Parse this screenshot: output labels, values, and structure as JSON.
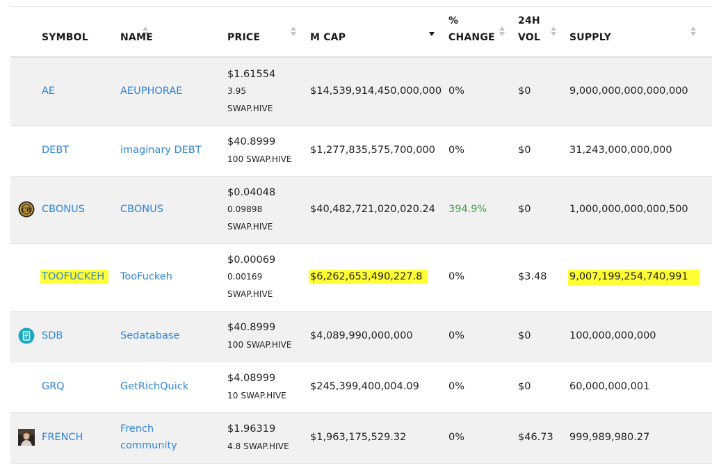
{
  "columns": [
    {
      "label": ""
    },
    {
      "label": "SYMBOL"
    },
    {
      "label": "NAME"
    },
    {
      "label": "PRICE"
    },
    {
      "label": "M CAP"
    },
    {
      "label": "% CHANGE"
    },
    {
      "label": "24H VOL"
    },
    {
      "label": "SUPPLY"
    }
  ],
  "header": {
    "change_line1": "%",
    "change_line2": "CHANGE",
    "vol_line1": "24H",
    "vol_line2": "VOL"
  },
  "rows": [
    {
      "icon": "",
      "symbol": "AE",
      "name": "AEUPHORAE",
      "price": "$1.61554",
      "price_sub1": "3.95",
      "price_sub2": "SWAP.HIVE",
      "mcap": "$14,539,914,450,000,000",
      "change": "0%",
      "vol": "$0",
      "supply": "9,000,000,000,000,000"
    },
    {
      "icon": "",
      "symbol": "DEBT",
      "name": "imaginary DEBT",
      "price": "$40.8999",
      "price_sub1": "100 SWAP.HIVE",
      "price_sub2": "",
      "mcap": "$1,277,835,575,700,000",
      "change": "0%",
      "vol": "$0",
      "supply": "31,243,000,000,000"
    },
    {
      "icon": "cbonus-coin-icon",
      "symbol": "CBONUS",
      "name": "CBONUS",
      "price": "$0.04048",
      "price_sub1": "0.09898",
      "price_sub2": "SWAP.HIVE",
      "mcap": "$40,482,721,020,020.24",
      "change": "394.9%",
      "vol": "$0",
      "supply": "1,000,000,000,000,500"
    },
    {
      "icon": "",
      "symbol": "TOOFUCKEH",
      "name": "TooFuckeh",
      "price": "$0.00069",
      "price_sub1": "0.00169",
      "price_sub2": "SWAP.HIVE",
      "mcap": "$6,262,653,490,227.8",
      "change": "0%",
      "vol": "$3.48",
      "supply": "9,007,199,254,740,991"
    },
    {
      "icon": "sedatabase-logo-icon",
      "symbol": "SDB",
      "name": "Sedatabase",
      "price": "$40.8999",
      "price_sub1": "100 SWAP.HIVE",
      "price_sub2": "",
      "mcap": "$4,089,990,000,000",
      "change": "0%",
      "vol": "$0",
      "supply": "100,000,000,000"
    },
    {
      "icon": "",
      "symbol": "GRQ",
      "name": "GetRichQuick",
      "price": "$4.08999",
      "price_sub1": "10 SWAP.HIVE",
      "price_sub2": "",
      "mcap": "$245,399,400,004.09",
      "change": "0%",
      "vol": "$0",
      "supply": "60,000,000,001"
    },
    {
      "icon": "french-portrait-icon",
      "symbol": "FRENCH",
      "name": "French community",
      "price": "$1.96319",
      "price_sub1": "4.8 SWAP.HIVE",
      "price_sub2": "",
      "mcap": "$1,963,175,529.32",
      "change": "0%",
      "vol": "$46.73",
      "supply": "999,989,980.27"
    }
  ],
  "colors": {
    "link": "#2f84d6",
    "positive": "#3fa249",
    "highlight": "#ffff33",
    "row_alt": "#f1f1f1"
  },
  "sort": {
    "active_column": "M CAP",
    "direction": "descending"
  }
}
